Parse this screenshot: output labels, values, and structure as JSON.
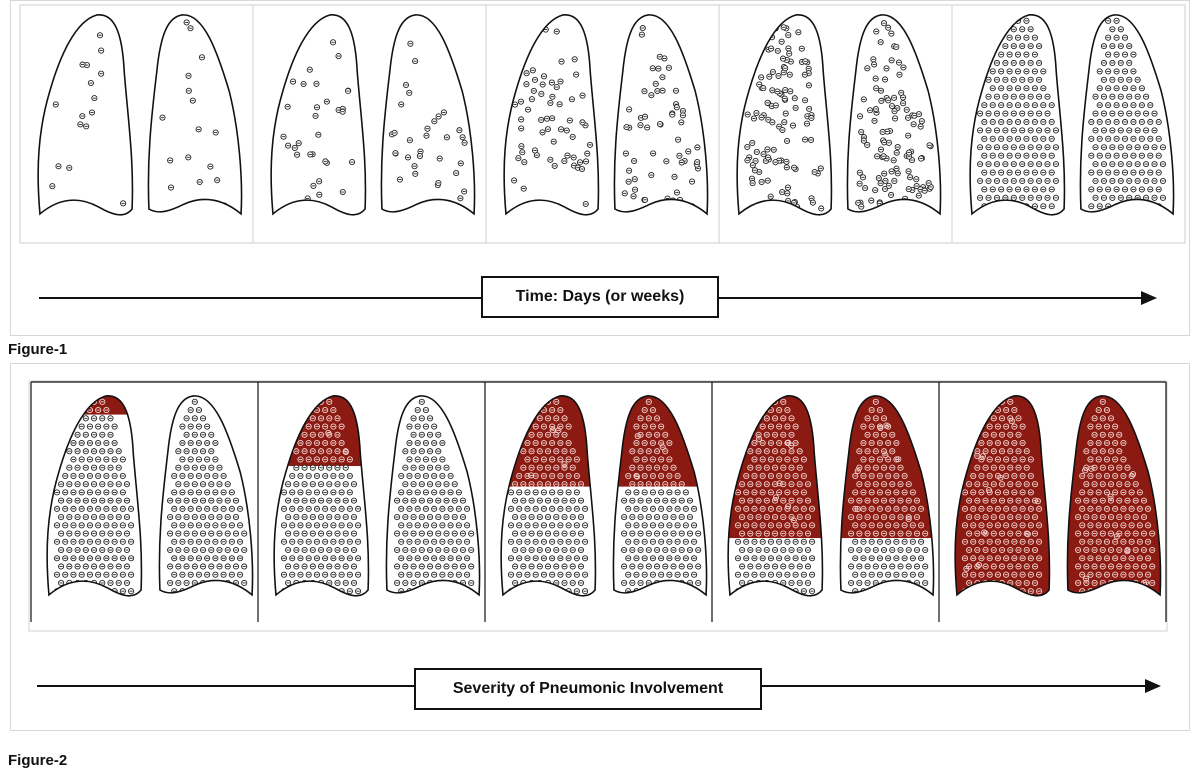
{
  "figure1": {
    "caption": "Figure-1",
    "axis_label": "Time: Days (or weeks)",
    "stages": [
      {
        "stage": 1,
        "particle_density": "sparse"
      },
      {
        "stage": 2,
        "particle_density": "low"
      },
      {
        "stage": 3,
        "particle_density": "moderate"
      },
      {
        "stage": 4,
        "particle_density": "high"
      },
      {
        "stage": 5,
        "particle_density": "dense"
      }
    ]
  },
  "figure2": {
    "caption": "Figure-2",
    "axis_label": "Severity of Pneumonic  Involvement",
    "consolidation_color": "#8b1a12",
    "stages": [
      {
        "stage": 1,
        "left_consolidation": 0.1,
        "right_consolidation": 0
      },
      {
        "stage": 2,
        "left_consolidation": 0.35,
        "right_consolidation": 0
      },
      {
        "stage": 3,
        "left_consolidation": 0.45,
        "right_consolidation": 0.45
      },
      {
        "stage": 4,
        "left_consolidation": 0.7,
        "right_consolidation": 0.7
      },
      {
        "stage": 5,
        "left_consolidation": 1,
        "right_consolidation": 1
      }
    ]
  }
}
